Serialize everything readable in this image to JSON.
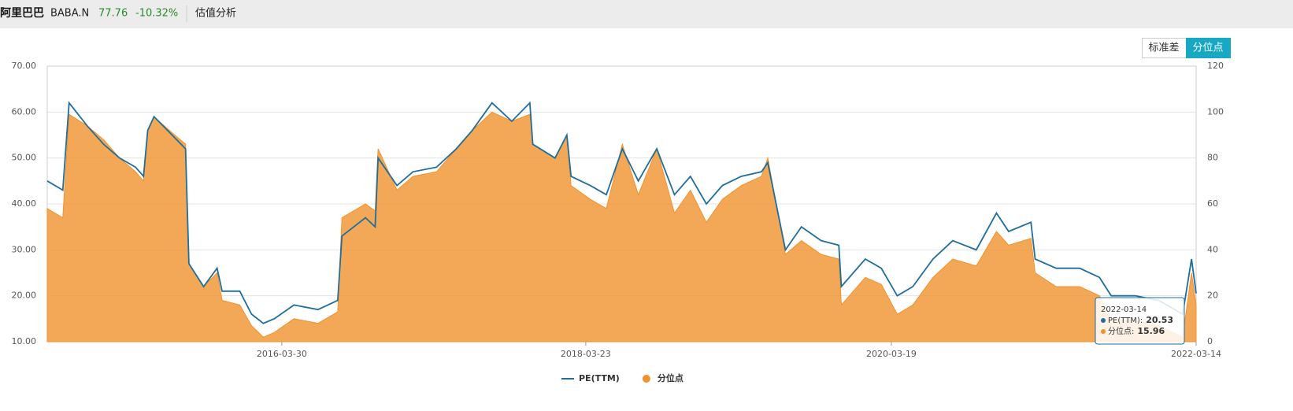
{
  "header": {
    "name": "阿里巴巴",
    "code": "BABA.N",
    "price": "77.76",
    "change": "-10.32%",
    "tab": "估值分析"
  },
  "buttons": [
    "标准差",
    "分位点"
  ],
  "chart_data": {
    "type": "line",
    "x": [
      "2014-09-19",
      "2014-10-26",
      "2014-11-10",
      "2014-12-23",
      "2015-01-31",
      "2015-03-10",
      "2015-04-17",
      "2015-05-06",
      "2015-05-16",
      "2015-05-31",
      "2015-07-13",
      "2015-08-14",
      "2015-08-22",
      "2015-09-26",
      "2015-10-28",
      "2015-11-09",
      "2015-12-21",
      "2016-01-18",
      "2016-02-15",
      "2016-03-12",
      "2016-04-28",
      "2016-06-24",
      "2016-08-10",
      "2016-08-20",
      "2016-10-15",
      "2016-11-07",
      "2016-11-14",
      "2016-12-29",
      "2017-02-05",
      "2017-04-02",
      "2017-05-19",
      "2017-06-26",
      "2017-08-12",
      "2017-09-28",
      "2017-11-10",
      "2017-11-17",
      "2018-01-09",
      "2018-02-06",
      "2018-02-16",
      "2018-04-03",
      "2018-05-11",
      "2018-06-18",
      "2018-07-26",
      "2018-09-08",
      "2018-10-20",
      "2018-11-27",
      "2019-01-04",
      "2019-02-11",
      "2019-03-28",
      "2019-05-15",
      "2019-05-30",
      "2019-07-11",
      "2019-08-18",
      "2019-10-04",
      "2019-11-15",
      "2019-11-21",
      "2020-01-17",
      "2020-02-24",
      "2020-04-02",
      "2020-05-09",
      "2020-06-26",
      "2020-08-12",
      "2020-10-07",
      "2020-11-24",
      "2020-12-23",
      "2021-02-14",
      "2021-02-24",
      "2021-04-15",
      "2021-06-10",
      "2021-07-27",
      "2021-08-24",
      "2021-10-20",
      "2021-12-15",
      "2022-02-10",
      "2022-03-03",
      "2022-03-14"
    ],
    "series": [
      {
        "name": "PE(TTM)",
        "color": "#1f6e9c",
        "values": [
          45,
          43,
          62,
          57,
          53,
          50,
          48,
          46,
          56,
          59,
          55,
          52,
          27,
          22,
          26,
          21,
          21,
          16,
          14,
          15,
          18,
          17,
          19,
          33,
          37,
          35,
          50,
          44,
          47,
          48,
          52,
          56,
          62,
          58,
          62,
          53,
          50,
          55,
          46,
          44,
          42,
          52,
          45,
          52,
          42,
          46,
          40,
          44,
          46,
          47,
          49,
          30,
          35,
          32,
          31,
          22,
          28,
          26,
          20,
          22,
          28,
          32,
          30,
          38,
          34,
          36,
          28,
          26,
          26,
          24,
          20,
          20,
          19,
          16,
          28,
          20.53
        ]
      },
      {
        "name": "分位点",
        "color": "#f0922d",
        "axis": "y2",
        "values": [
          58,
          54,
          99,
          94,
          88,
          80,
          74,
          70,
          92,
          98,
          91,
          86,
          34,
          24,
          30,
          18,
          16,
          7,
          2,
          4,
          10,
          8,
          13,
          54,
          60,
          57,
          84,
          66,
          72,
          74,
          84,
          92,
          100,
          96,
          99,
          86,
          80,
          90,
          68,
          62,
          58,
          86,
          64,
          84,
          56,
          66,
          52,
          62,
          68,
          72,
          80,
          38,
          44,
          38,
          36,
          16,
          28,
          25,
          12,
          16,
          28,
          36,
          33,
          48,
          42,
          45,
          30,
          24,
          24,
          20,
          10,
          9,
          7,
          2,
          30,
          15.96
        ]
      }
    ],
    "xlim": [
      "2014-09-19",
      "2022-03-14"
    ],
    "xticks": [
      "2016-03-30",
      "2018-03-23",
      "2020-03-19",
      "2022-03-14"
    ],
    "ylim": [
      10,
      70
    ],
    "yticks": [
      {
        "value": 10,
        "label": "10.00"
      },
      {
        "value": 20,
        "label": "20.00"
      },
      {
        "value": 30,
        "label": "30.00"
      },
      {
        "value": 40,
        "label": "40.00"
      },
      {
        "value": 50,
        "label": "50.00"
      },
      {
        "value": 60,
        "label": "60.00"
      },
      {
        "value": 70,
        "label": "70.00"
      }
    ],
    "y2lim": [
      0,
      120
    ],
    "y2ticks": [
      0,
      20,
      40,
      60,
      80,
      100,
      120
    ],
    "grid": true,
    "legend": "bottom",
    "tooltip": {
      "labels": [
        "PE(TTM):",
        "分位点:"
      ]
    }
  }
}
